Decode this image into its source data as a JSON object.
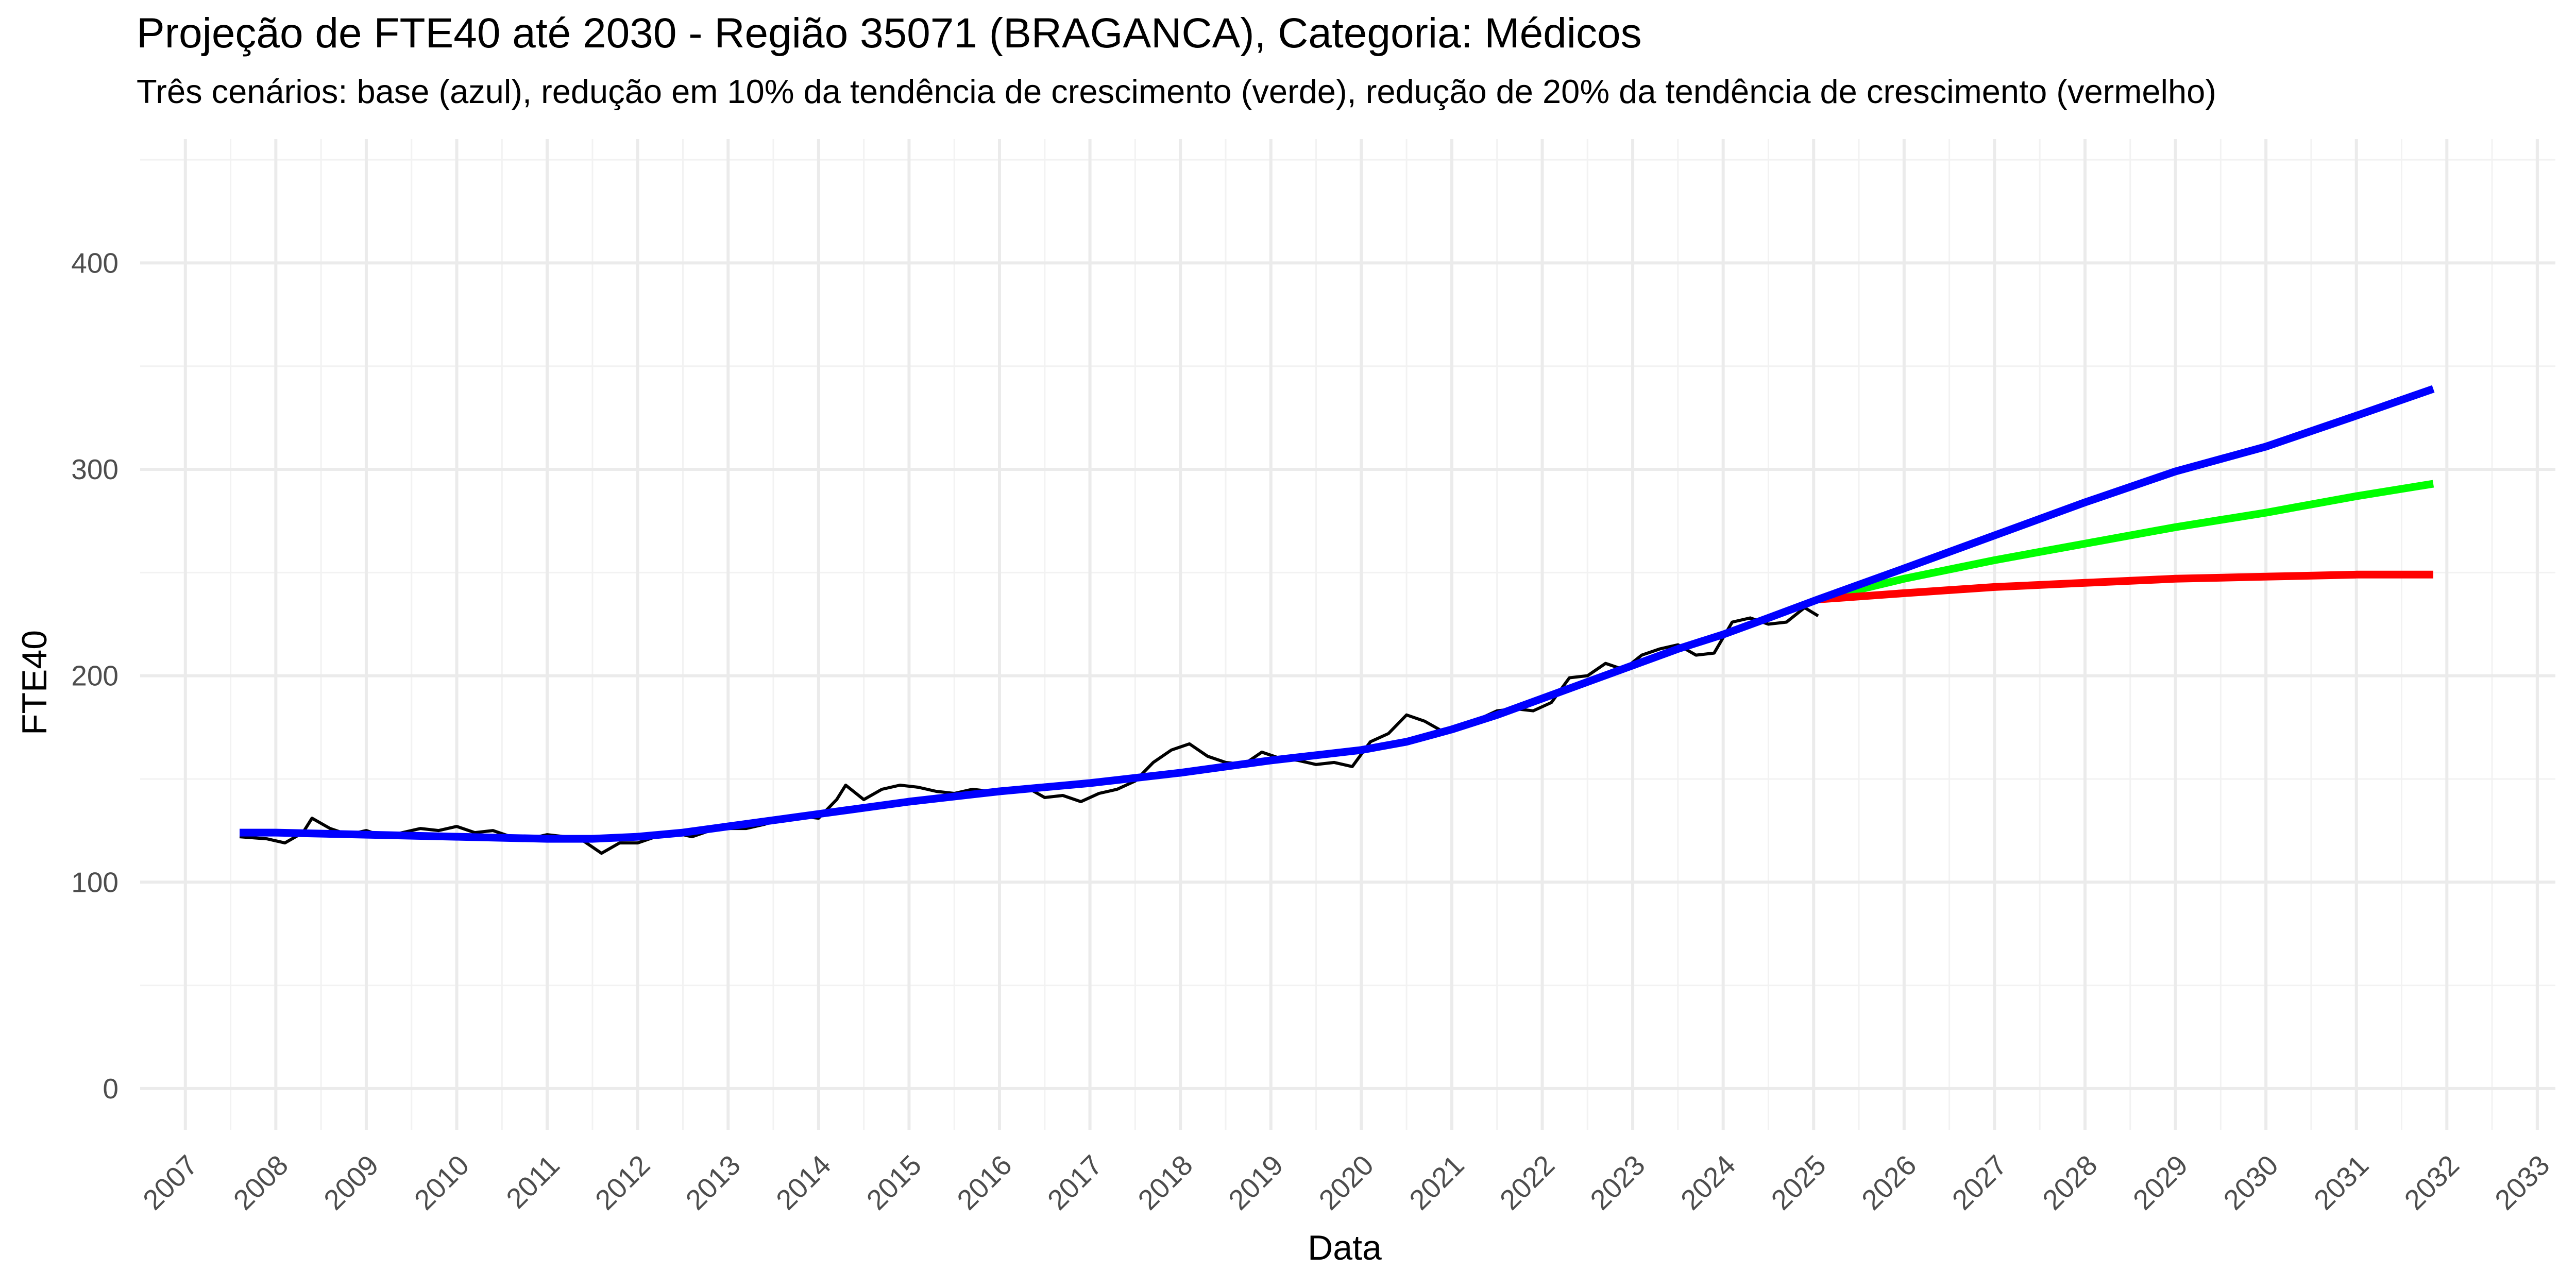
{
  "chart_data": {
    "type": "line",
    "title": "Projeção de FTE40 até 2030 - Região 35071 (BRAGANCA), Categoria: Médicos",
    "subtitle": "Três cenários: base (azul), redução em 10% da tendência de crescimento (verde), redução de 20% da tendência de crescimento (vermelho)",
    "xlabel": "Data",
    "ylabel": "FTE40",
    "x_axis": {
      "type": "date",
      "range": [
        2006.5,
        2033.2
      ],
      "ticks": [
        2007,
        2008,
        2009,
        2010,
        2011,
        2012,
        2013,
        2014,
        2015,
        2016,
        2017,
        2018,
        2019,
        2020,
        2021,
        2022,
        2023,
        2024,
        2025,
        2026,
        2027,
        2028,
        2029,
        2030,
        2031,
        2032,
        2033
      ]
    },
    "y_axis": {
      "range": [
        -20,
        460
      ],
      "ticks": [
        0,
        100,
        200,
        300,
        400
      ]
    },
    "grid": true,
    "legend": "none",
    "colors": {
      "observed": "#000000",
      "base": "#0000ff",
      "green": "#00ff00",
      "red": "#ff0000"
    },
    "series": [
      {
        "role": "observed",
        "x": [
          2007.6,
          2007.9,
          2008.1,
          2008.3,
          2008.4,
          2008.6,
          2008.8,
          2009.0,
          2009.2,
          2009.4,
          2009.6,
          2009.8,
          2010.0,
          2010.2,
          2010.4,
          2010.6,
          2010.8,
          2011.0,
          2011.2,
          2011.4,
          2011.6,
          2011.8,
          2012.0,
          2012.2,
          2012.4,
          2012.6,
          2012.8,
          2013.0,
          2013.2,
          2013.4,
          2013.6,
          2013.8,
          2014.0,
          2014.2,
          2014.3,
          2014.5,
          2014.7,
          2014.9,
          2015.1,
          2015.3,
          2015.5,
          2015.7,
          2015.9,
          2016.1,
          2016.3,
          2016.5,
          2016.7,
          2016.9,
          2017.1,
          2017.3,
          2017.5,
          2017.7,
          2017.9,
          2018.1,
          2018.3,
          2018.5,
          2018.7,
          2018.9,
          2019.1,
          2019.3,
          2019.5,
          2019.7,
          2019.9,
          2020.1,
          2020.3,
          2020.5,
          2020.7,
          2020.9,
          2021.1,
          2021.3,
          2021.5,
          2021.7,
          2021.9,
          2022.1,
          2022.3,
          2022.5,
          2022.7,
          2022.9,
          2023.1,
          2023.3,
          2023.5,
          2023.7,
          2023.9,
          2024.1,
          2024.3,
          2024.5,
          2024.7,
          2024.9,
          2025.05
        ],
        "y": [
          122,
          121,
          119,
          124,
          131,
          126,
          123,
          125,
          122,
          124,
          126,
          125,
          127,
          124,
          125,
          122,
          121,
          123,
          122,
          120,
          114,
          119,
          119,
          122,
          124,
          122,
          125,
          126,
          126,
          128,
          131,
          132,
          131,
          140,
          147,
          140,
          145,
          147,
          146,
          144,
          143,
          145,
          144,
          145,
          146,
          141,
          142,
          139,
          143,
          145,
          149,
          158,
          164,
          167,
          161,
          158,
          157,
          163,
          160,
          159,
          157,
          158,
          156,
          168,
          172,
          181,
          178,
          173,
          175,
          179,
          183,
          184,
          183,
          187,
          199,
          200,
          206,
          203,
          210,
          213,
          215,
          210,
          211,
          226,
          228,
          225,
          226,
          233,
          229
        ]
      },
      {
        "role": "base",
        "x": [
          2007.6,
          2008.0,
          2009.0,
          2010.0,
          2011.0,
          2011.5,
          2012.0,
          2012.5,
          2013.0,
          2014.0,
          2015.0,
          2016.0,
          2017.0,
          2018.0,
          2019.0,
          2020.0,
          2020.5,
          2021.0,
          2021.5,
          2022.0,
          2022.5,
          2023.0,
          2023.5,
          2024.0,
          2024.5,
          2025.05,
          2026.0,
          2027.0,
          2028.0,
          2029.0,
          2030.0,
          2031.0,
          2031.85
        ],
        "y": [
          124,
          124,
          123,
          122,
          121,
          121,
          122,
          124,
          127,
          133,
          139,
          144,
          148,
          153,
          159,
          164,
          168,
          174,
          181,
          189,
          197,
          205,
          213,
          220,
          228,
          237,
          252,
          268,
          284,
          299,
          311,
          326,
          339
        ]
      },
      {
        "role": "green",
        "x": [
          2025.05,
          2026.0,
          2027.0,
          2028.0,
          2029.0,
          2030.0,
          2031.0,
          2031.85
        ],
        "y": [
          237,
          247,
          256,
          264,
          272,
          279,
          287,
          293
        ]
      },
      {
        "role": "red",
        "x": [
          2025.05,
          2026.0,
          2027.0,
          2028.0,
          2029.0,
          2030.0,
          2031.0,
          2031.85
        ],
        "y": [
          237,
          240,
          243,
          245,
          247,
          248,
          249,
          249
        ]
      }
    ]
  }
}
